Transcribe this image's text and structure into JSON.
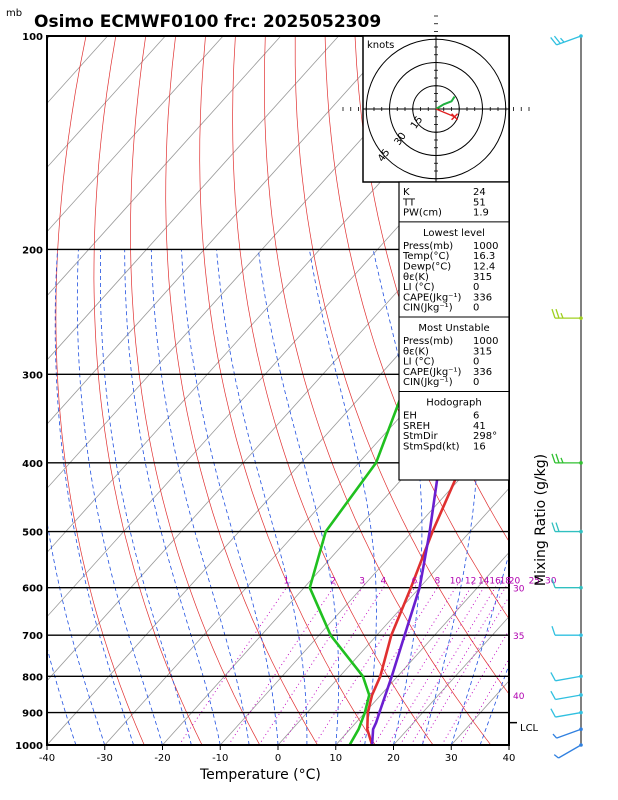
{
  "header": {
    "unit_mb": "mb",
    "title": "Osimo ECMWF0100 frc: 2025052309"
  },
  "chart_data": {
    "type": "skew-t log-p sounding",
    "x_axis": {
      "label": "Temperature (°C)",
      "ticks": [
        -40,
        -30,
        -20,
        -10,
        0,
        10,
        20,
        30,
        40
      ],
      "range": [
        -40,
        40
      ]
    },
    "y_axis": {
      "unit": "mb",
      "ticks": [
        100,
        200,
        300,
        400,
        500,
        600,
        700,
        800,
        900,
        1000
      ],
      "bold_ticks": [
        100,
        200,
        300,
        400,
        500,
        600,
        700,
        800,
        900,
        1000
      ],
      "range": [
        1000,
        100
      ],
      "scale": "log"
    },
    "right_axis_label": "Mixing Ratio (g/kg)",
    "mixing_ratio_labels": [
      "1",
      "2",
      "3",
      "4",
      "6",
      "8",
      "10",
      "12",
      "14",
      "16",
      "18",
      "20",
      "25",
      "30"
    ],
    "right_theta_labels": [
      "30",
      "35",
      "40"
    ],
    "lcl_label": "LCL",
    "lcl_pressure": 930,
    "temperature": {
      "color": "#e03030",
      "points": [
        [
          1000,
          16.3
        ],
        [
          950,
          13.0
        ],
        [
          900,
          10.5
        ],
        [
          850,
          8.5
        ],
        [
          800,
          7.0
        ],
        [
          700,
          2.5
        ],
        [
          600,
          -1.5
        ],
        [
          500,
          -6.5
        ],
        [
          400,
          -12.0
        ],
        [
          350,
          -13.5
        ],
        [
          300,
          -16.0
        ],
        [
          250,
          -20.0
        ],
        [
          220,
          -17.0
        ],
        [
          200,
          -14.0
        ],
        [
          150,
          -4.0
        ],
        [
          125,
          4.0
        ],
        [
          115,
          9.0
        ]
      ]
    },
    "dewpoint": {
      "color": "#20c020",
      "points": [
        [
          1000,
          12.4
        ],
        [
          950,
          11.5
        ],
        [
          900,
          10.0
        ],
        [
          850,
          8.0
        ],
        [
          800,
          4.0
        ],
        [
          700,
          -8.0
        ],
        [
          600,
          -19.0
        ],
        [
          500,
          -25.0
        ],
        [
          400,
          -27.0
        ],
        [
          300,
          -35.0
        ],
        [
          250,
          -43.0
        ],
        [
          200,
          -46.0
        ],
        [
          150,
          -49.0
        ],
        [
          100,
          -56.0
        ]
      ]
    },
    "parcel": {
      "color": "#6a1fd0",
      "points": [
        [
          1000,
          16.3
        ],
        [
          950,
          14.0
        ],
        [
          930,
          13.5
        ],
        [
          900,
          12.5
        ],
        [
          850,
          10.8
        ],
        [
          800,
          9.0
        ],
        [
          700,
          4.8
        ],
        [
          600,
          0.0
        ],
        [
          500,
          -7.0
        ],
        [
          400,
          -16.0
        ],
        [
          300,
          -30.0
        ],
        [
          250,
          -40.0
        ],
        [
          200,
          -52.0
        ],
        [
          150,
          -68.0
        ],
        [
          105,
          -88.0
        ]
      ]
    },
    "winds": [
      {
        "p": 100,
        "speed_kt": 25,
        "dir": 250,
        "color": "#30c0e0"
      },
      {
        "p": 250,
        "speed_kt": 25,
        "dir": 270,
        "color": "#a0d020"
      },
      {
        "p": 400,
        "speed_kt": 25,
        "dir": 270,
        "color": "#30c030"
      },
      {
        "p": 500,
        "speed_kt": 20,
        "dir": 270,
        "color": "#30c0c0"
      },
      {
        "p": 600,
        "speed_kt": 10,
        "dir": 270,
        "color": "#30c0c0"
      },
      {
        "p": 700,
        "speed_kt": 10,
        "dir": 270,
        "color": "#30c0e0"
      },
      {
        "p": 800,
        "speed_kt": 10,
        "dir": 260,
        "color": "#30c0e0"
      },
      {
        "p": 850,
        "speed_kt": 10,
        "dir": 260,
        "color": "#30c0e0"
      },
      {
        "p": 900,
        "speed_kt": 10,
        "dir": 260,
        "color": "#30c0e0"
      },
      {
        "p": 950,
        "speed_kt": 5,
        "dir": 250,
        "color": "#3080e0"
      },
      {
        "p": 1000,
        "speed_kt": 5,
        "dir": 240,
        "color": "#3080e0"
      }
    ]
  },
  "hodograph": {
    "label": "knots",
    "ring_labels": [
      "15",
      "30",
      "45"
    ],
    "trace": [
      [
        0,
        0
      ],
      [
        5,
        3
      ],
      [
        10,
        5
      ],
      [
        12,
        8
      ]
    ],
    "storm_motion": [
      12,
      -5
    ]
  },
  "indices": {
    "top": [
      {
        "k": "K",
        "v": "24"
      },
      {
        "k": "TT",
        "v": "51"
      },
      {
        "k": "PW(cm)",
        "v": "1.9"
      }
    ],
    "lowest_title": "Lowest level",
    "lowest": [
      {
        "k": "Press(mb)",
        "v": "1000"
      },
      {
        "k": "Temp(°C)",
        "v": "16.3"
      },
      {
        "k": "Dewp(°C)",
        "v": "12.4"
      },
      {
        "k": "θε(K)",
        "v": "315"
      },
      {
        "k": "LI (°C)",
        "v": "0"
      },
      {
        "k": "CAPE(Jkg⁻¹)",
        "v": "336"
      },
      {
        "k": "CIN(Jkg⁻¹)",
        "v": "0"
      }
    ],
    "unstable_title": "Most Unstable",
    "unstable": [
      {
        "k": "Press(mb)",
        "v": "1000"
      },
      {
        "k": "θε(K)",
        "v": "315"
      },
      {
        "k": "LI (°C)",
        "v": "0"
      },
      {
        "k": "CAPE(Jkg⁻¹)",
        "v": "336"
      },
      {
        "k": "CIN(Jkg⁻¹)",
        "v": "0"
      }
    ],
    "hodo_title": "Hodograph",
    "hodo": [
      {
        "k": "EH",
        "v": "6"
      },
      {
        "k": "SREH",
        "v": "41"
      },
      {
        "k": "StmDir",
        "v": "298°"
      },
      {
        "k": "StmSpd(kt)",
        "v": "16"
      }
    ]
  }
}
